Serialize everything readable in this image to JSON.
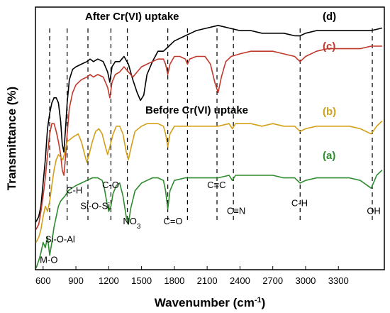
{
  "chart_data": {
    "type": "line",
    "xlabel": "Wavenumber (cm",
    "xlabel_sup": "-1",
    "xlabel_end": ")",
    "ylabel": "Transmittance (%)",
    "xlim": [
      530,
      3720
    ],
    "x_ticks": [
      "600",
      "900",
      "1200",
      "1500",
      "1800",
      "2100",
      "2400",
      "2700",
      "3000",
      "3300"
    ],
    "x_tick_values": [
      600,
      900,
      1200,
      1500,
      1800,
      2100,
      2400,
      2700,
      3000,
      3300
    ],
    "y_ticks": "none",
    "grid": false,
    "section_titles": {
      "top": "After Cr(VI) uptake",
      "middle": "Before Cr(VI) uptake"
    },
    "series": [
      {
        "name": "(d)",
        "color": "#000000",
        "points": [
          [
            535,
            0.18
          ],
          [
            560,
            0.2
          ],
          [
            580,
            0.24
          ],
          [
            600,
            0.33
          ],
          [
            620,
            0.42
          ],
          [
            640,
            0.54
          ],
          [
            660,
            0.6
          ],
          [
            680,
            0.64
          ],
          [
            700,
            0.66
          ],
          [
            720,
            0.66
          ],
          [
            740,
            0.64
          ],
          [
            760,
            0.57
          ],
          [
            775,
            0.48
          ],
          [
            790,
            0.45
          ],
          [
            805,
            0.54
          ],
          [
            820,
            0.64
          ],
          [
            840,
            0.73
          ],
          [
            870,
            0.77
          ],
          [
            900,
            0.78
          ],
          [
            950,
            0.79
          ],
          [
            1000,
            0.8
          ],
          [
            1030,
            0.81
          ],
          [
            1060,
            0.8
          ],
          [
            1100,
            0.81
          ],
          [
            1150,
            0.8
          ],
          [
            1190,
            0.76
          ],
          [
            1210,
            0.72
          ],
          [
            1230,
            0.78
          ],
          [
            1260,
            0.8
          ],
          [
            1300,
            0.8
          ],
          [
            1340,
            0.82
          ],
          [
            1380,
            0.79
          ],
          [
            1420,
            0.73
          ],
          [
            1460,
            0.68
          ],
          [
            1490,
            0.65
          ],
          [
            1520,
            0.67
          ],
          [
            1550,
            0.75
          ],
          [
            1600,
            0.8
          ],
          [
            1650,
            0.84
          ],
          [
            1700,
            0.84
          ],
          [
            1750,
            0.86
          ],
          [
            1800,
            0.88
          ],
          [
            1900,
            0.9
          ],
          [
            1950,
            0.91
          ],
          [
            2000,
            0.92
          ],
          [
            2100,
            0.93
          ],
          [
            2200,
            0.94
          ],
          [
            2300,
            0.93
          ],
          [
            2400,
            0.92
          ],
          [
            2500,
            0.92
          ],
          [
            2600,
            0.91
          ],
          [
            2700,
            0.91
          ],
          [
            2800,
            0.91
          ],
          [
            2900,
            0.9
          ],
          [
            2950,
            0.9
          ],
          [
            3000,
            0.91
          ],
          [
            3100,
            0.92
          ],
          [
            3200,
            0.92
          ],
          [
            3300,
            0.92
          ],
          [
            3400,
            0.92
          ],
          [
            3500,
            0.92
          ],
          [
            3600,
            0.92
          ],
          [
            3700,
            0.93
          ]
        ]
      },
      {
        "name": "(c)",
        "color": "#c0392b",
        "points": [
          [
            535,
            0.15
          ],
          [
            560,
            0.17
          ],
          [
            580,
            0.22
          ],
          [
            600,
            0.28
          ],
          [
            620,
            0.35
          ],
          [
            640,
            0.44
          ],
          [
            660,
            0.52
          ],
          [
            680,
            0.56
          ],
          [
            700,
            0.56
          ],
          [
            720,
            0.53
          ],
          [
            740,
            0.49
          ],
          [
            760,
            0.44
          ],
          [
            775,
            0.38
          ],
          [
            790,
            0.36
          ],
          [
            805,
            0.43
          ],
          [
            820,
            0.52
          ],
          [
            840,
            0.62
          ],
          [
            870,
            0.68
          ],
          [
            900,
            0.71
          ],
          [
            950,
            0.73
          ],
          [
            1000,
            0.74
          ],
          [
            1030,
            0.75
          ],
          [
            1060,
            0.74
          ],
          [
            1100,
            0.75
          ],
          [
            1150,
            0.74
          ],
          [
            1190,
            0.7
          ],
          [
            1210,
            0.66
          ],
          [
            1230,
            0.72
          ],
          [
            1260,
            0.75
          ],
          [
            1300,
            0.76
          ],
          [
            1340,
            0.78
          ],
          [
            1380,
            0.76
          ],
          [
            1420,
            0.74
          ],
          [
            1460,
            0.76
          ],
          [
            1500,
            0.78
          ],
          [
            1550,
            0.79
          ],
          [
            1600,
            0.8
          ],
          [
            1650,
            0.81
          ],
          [
            1700,
            0.81
          ],
          [
            1720,
            0.79
          ],
          [
            1740,
            0.75
          ],
          [
            1760,
            0.79
          ],
          [
            1800,
            0.82
          ],
          [
            1850,
            0.82
          ],
          [
            1900,
            0.81
          ],
          [
            1920,
            0.79
          ],
          [
            1940,
            0.81
          ],
          [
            2000,
            0.82
          ],
          [
            2080,
            0.82
          ],
          [
            2130,
            0.79
          ],
          [
            2170,
            0.72
          ],
          [
            2200,
            0.68
          ],
          [
            2230,
            0.74
          ],
          [
            2270,
            0.8
          ],
          [
            2320,
            0.82
          ],
          [
            2400,
            0.83
          ],
          [
            2500,
            0.84
          ],
          [
            2600,
            0.84
          ],
          [
            2700,
            0.84
          ],
          [
            2800,
            0.83
          ],
          [
            2900,
            0.82
          ],
          [
            2950,
            0.8
          ],
          [
            3000,
            0.82
          ],
          [
            3100,
            0.84
          ],
          [
            3200,
            0.85
          ],
          [
            3300,
            0.85
          ],
          [
            3400,
            0.85
          ],
          [
            3500,
            0.85
          ],
          [
            3600,
            0.86
          ],
          [
            3700,
            0.86
          ]
        ]
      },
      {
        "name": "(b)",
        "color": "#d4a017",
        "points": [
          [
            535,
            0.1
          ],
          [
            560,
            0.12
          ],
          [
            580,
            0.15
          ],
          [
            600,
            0.2
          ],
          [
            620,
            0.24
          ],
          [
            640,
            0.22
          ],
          [
            660,
            0.26
          ],
          [
            680,
            0.32
          ],
          [
            700,
            0.38
          ],
          [
            720,
            0.42
          ],
          [
            740,
            0.44
          ],
          [
            760,
            0.43
          ],
          [
            780,
            0.42
          ],
          [
            800,
            0.45
          ],
          [
            820,
            0.49
          ],
          [
            850,
            0.5
          ],
          [
            880,
            0.51
          ],
          [
            920,
            0.52
          ],
          [
            950,
            0.49
          ],
          [
            980,
            0.44
          ],
          [
            1000,
            0.41
          ],
          [
            1020,
            0.44
          ],
          [
            1050,
            0.49
          ],
          [
            1080,
            0.53
          ],
          [
            1110,
            0.54
          ],
          [
            1140,
            0.52
          ],
          [
            1170,
            0.47
          ],
          [
            1190,
            0.44
          ],
          [
            1210,
            0.47
          ],
          [
            1240,
            0.52
          ],
          [
            1270,
            0.55
          ],
          [
            1300,
            0.55
          ],
          [
            1330,
            0.52
          ],
          [
            1360,
            0.45
          ],
          [
            1380,
            0.42
          ],
          [
            1400,
            0.46
          ],
          [
            1440,
            0.53
          ],
          [
            1500,
            0.55
          ],
          [
            1550,
            0.56
          ],
          [
            1600,
            0.56
          ],
          [
            1650,
            0.56
          ],
          [
            1700,
            0.55
          ],
          [
            1720,
            0.52
          ],
          [
            1740,
            0.47
          ],
          [
            1760,
            0.52
          ],
          [
            1800,
            0.55
          ],
          [
            1900,
            0.55
          ],
          [
            2000,
            0.55
          ],
          [
            2100,
            0.55
          ],
          [
            2200,
            0.55
          ],
          [
            2300,
            0.56
          ],
          [
            2330,
            0.54
          ],
          [
            2360,
            0.56
          ],
          [
            2400,
            0.56
          ],
          [
            2500,
            0.56
          ],
          [
            2600,
            0.55
          ],
          [
            2700,
            0.56
          ],
          [
            2800,
            0.55
          ],
          [
            2900,
            0.55
          ],
          [
            2950,
            0.53
          ],
          [
            3000,
            0.54
          ],
          [
            3100,
            0.55
          ],
          [
            3200,
            0.55
          ],
          [
            3300,
            0.55
          ],
          [
            3400,
            0.55
          ],
          [
            3500,
            0.54
          ],
          [
            3600,
            0.52
          ],
          [
            3650,
            0.55
          ],
          [
            3700,
            0.57
          ]
        ]
      },
      {
        "name": "(a)",
        "color": "#2e8b2e",
        "points": [
          [
            535,
            0.0
          ],
          [
            560,
            0.03
          ],
          [
            580,
            0.06
          ],
          [
            600,
            0.1
          ],
          [
            620,
            0.08
          ],
          [
            640,
            0.12
          ],
          [
            660,
            0.05
          ],
          [
            680,
            0.1
          ],
          [
            700,
            0.16
          ],
          [
            720,
            0.2
          ],
          [
            740,
            0.24
          ],
          [
            760,
            0.26
          ],
          [
            780,
            0.27
          ],
          [
            800,
            0.28
          ],
          [
            830,
            0.3
          ],
          [
            860,
            0.31
          ],
          [
            900,
            0.32
          ],
          [
            950,
            0.33
          ],
          [
            1000,
            0.34
          ],
          [
            1050,
            0.35
          ],
          [
            1100,
            0.35
          ],
          [
            1140,
            0.34
          ],
          [
            1160,
            0.31
          ],
          [
            1180,
            0.26
          ],
          [
            1200,
            0.22
          ],
          [
            1220,
            0.24
          ],
          [
            1240,
            0.29
          ],
          [
            1270,
            0.32
          ],
          [
            1300,
            0.33
          ],
          [
            1330,
            0.28
          ],
          [
            1360,
            0.2
          ],
          [
            1380,
            0.17
          ],
          [
            1400,
            0.23
          ],
          [
            1440,
            0.3
          ],
          [
            1500,
            0.33
          ],
          [
            1550,
            0.34
          ],
          [
            1600,
            0.35
          ],
          [
            1650,
            0.35
          ],
          [
            1700,
            0.34
          ],
          [
            1720,
            0.3
          ],
          [
            1740,
            0.23
          ],
          [
            1760,
            0.3
          ],
          [
            1800,
            0.34
          ],
          [
            1900,
            0.35
          ],
          [
            2000,
            0.35
          ],
          [
            2100,
            0.35
          ],
          [
            2200,
            0.35
          ],
          [
            2300,
            0.36
          ],
          [
            2330,
            0.34
          ],
          [
            2360,
            0.36
          ],
          [
            2400,
            0.36
          ],
          [
            2500,
            0.36
          ],
          [
            2600,
            0.36
          ],
          [
            2700,
            0.36
          ],
          [
            2800,
            0.35
          ],
          [
            2900,
            0.35
          ],
          [
            2950,
            0.33
          ],
          [
            3000,
            0.34
          ],
          [
            3100,
            0.35
          ],
          [
            3200,
            0.35
          ],
          [
            3300,
            0.35
          ],
          [
            3400,
            0.35
          ],
          [
            3500,
            0.34
          ],
          [
            3600,
            0.31
          ],
          [
            3650,
            0.36
          ],
          [
            3700,
            0.38
          ]
        ]
      }
    ],
    "reference_lines": [
      660,
      820,
      1010,
      1220,
      1370,
      1740,
      1920,
      2190,
      2340,
      2950,
      3610
    ],
    "annotations": [
      {
        "text": "M-O",
        "x": 570,
        "y": 0.02
      },
      {
        "text": "Si-O-Al",
        "x": 620,
        "y": 0.1
      },
      {
        "text": "C-H",
        "x": 810,
        "y": 0.29
      },
      {
        "text": "Si-O-Si",
        "x": 940,
        "y": 0.23
      },
      {
        "text": "C-O",
        "x": 1140,
        "y": 0.31
      },
      {
        "text": "NO",
        "sub": "3",
        "x": 1330,
        "y": 0.17
      },
      {
        "text": "C=O",
        "x": 1700,
        "y": 0.17
      },
      {
        "text": "C≡C",
        "x": 2100,
        "y": 0.31
      },
      {
        "text": "C≡N",
        "x": 2280,
        "y": 0.21
      },
      {
        "text": "C-H",
        "x": 2870,
        "y": 0.24
      },
      {
        "text": "OH",
        "x": 3560,
        "y": 0.21
      }
    ]
  }
}
